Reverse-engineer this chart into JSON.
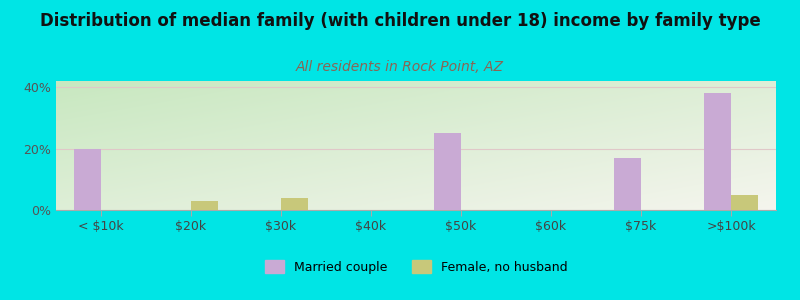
{
  "title": "Distribution of median family (with children under 18) income by family type",
  "subtitle": "All residents in Rock Point, AZ",
  "categories": [
    "< $10k",
    "$20k",
    "$30k",
    "$40k",
    "$50k",
    "$60k",
    "$75k",
    ">$100k"
  ],
  "married_couple": [
    20,
    0,
    0,
    0,
    25,
    0,
    17,
    38
  ],
  "female_no_husband": [
    0,
    3,
    4,
    0,
    0,
    0,
    0,
    5
  ],
  "bar_color_married": "#c9aad4",
  "bar_color_female": "#c8c87a",
  "bg_top_left": "#c8e8c0",
  "bg_bottom_right": "#f5f5ee",
  "figure_bg": "#00e5e5",
  "ylim": [
    0,
    42
  ],
  "yticks": [
    0,
    20,
    40
  ],
  "ytick_labels": [
    "0%",
    "20%",
    "40%"
  ],
  "title_fontsize": 12,
  "subtitle_fontsize": 10,
  "subtitle_color": "#886655",
  "grid_color": "#e0c8c8",
  "bar_width": 0.3
}
